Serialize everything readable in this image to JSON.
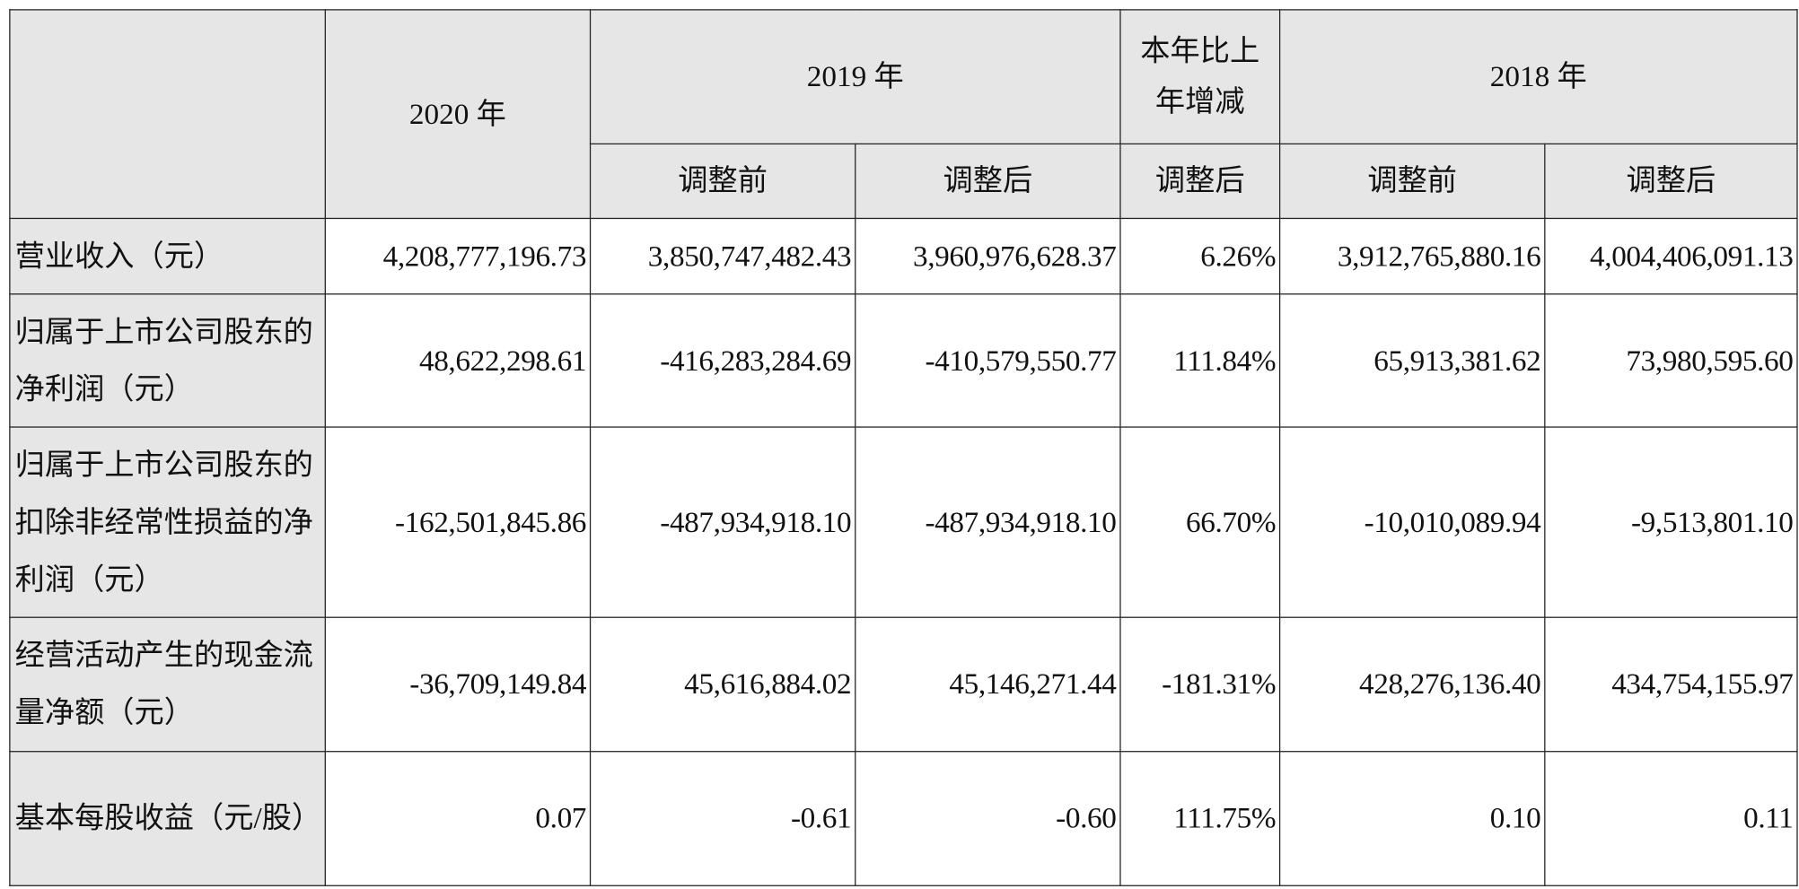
{
  "header": {
    "year_2020": "2020 年",
    "year_2019": "2019 年",
    "change": "本年比上年增减",
    "year_2018": "2018 年",
    "sub": [
      "调整前",
      "调整后",
      "调整后",
      "调整前",
      "调整后"
    ]
  },
  "rows": [
    {
      "label": "营业收入（元）",
      "values": [
        "4,208,777,196.73",
        "3,850,747,482.43",
        "3,960,976,628.37",
        "6.26%",
        "3,912,765,880.16",
        "4,004,406,091.13"
      ]
    },
    {
      "label": "归属于上市公司股东的净利润（元）",
      "values": [
        "48,622,298.61",
        "-416,283,284.69",
        "-410,579,550.77",
        "111.84%",
        "65,913,381.62",
        "73,980,595.60"
      ]
    },
    {
      "label": "归属于上市公司股东的扣除非经常性损益的净利润（元）",
      "values": [
        "-162,501,845.86",
        "-487,934,918.10",
        "-487,934,918.10",
        "66.70%",
        "-10,010,089.94",
        "-9,513,801.10"
      ]
    },
    {
      "label": "经营活动产生的现金流量净额（元）",
      "values": [
        "-36,709,149.84",
        "45,616,884.02",
        "45,146,271.44",
        "-181.31%",
        "428,276,136.40",
        "434,754,155.97"
      ]
    },
    {
      "label": "基本每股收益（元/股）",
      "values": [
        "0.07",
        "-0.61",
        "-0.60",
        "111.75%",
        "0.10",
        "0.11"
      ]
    }
  ]
}
